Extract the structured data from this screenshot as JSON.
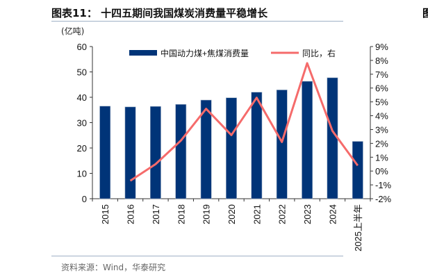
{
  "header": {
    "title": "图表11：  十四五期间我国煤炭消费量平稳增长",
    "unit": "(亿吨)"
  },
  "footer": {
    "source": "资料来源：Wind，华泰研究"
  },
  "chart_data": {
    "type": "bar+line",
    "title": "图表11：  十四五期间我国煤炭消费量平稳增长",
    "categories": [
      "2015",
      "2016",
      "2017",
      "2018",
      "2019",
      "2020",
      "2021",
      "2022",
      "2023",
      "2024",
      "2025上半年"
    ],
    "series": [
      {
        "name": "中国动力煤+焦煤消费量",
        "type": "bar",
        "axis": "left",
        "color": "#003478",
        "values": [
          36.5,
          36.2,
          36.4,
          37.2,
          38.9,
          39.8,
          42.0,
          42.9,
          46.3,
          47.7,
          22.6
        ]
      },
      {
        "name": "同比，右",
        "type": "line",
        "axis": "right",
        "color": "#f56b6b",
        "values": [
          null,
          -0.7,
          0.5,
          2.2,
          4.5,
          2.6,
          5.3,
          2.1,
          7.8,
          2.9,
          0.4
        ]
      }
    ],
    "ylabel": "(亿吨)",
    "ylim": [
      0,
      60
    ],
    "yticks": [
      "0",
      "10",
      "20",
      "30",
      "40",
      "50",
      "60"
    ],
    "y2lim": [
      -2,
      9
    ],
    "y2ticks": [
      "-2%",
      "-1%",
      "0%",
      "1%",
      "2%",
      "3%",
      "4%",
      "5%",
      "6%",
      "7%",
      "8%",
      "9%"
    ],
    "legend": "top",
    "grid": false
  }
}
